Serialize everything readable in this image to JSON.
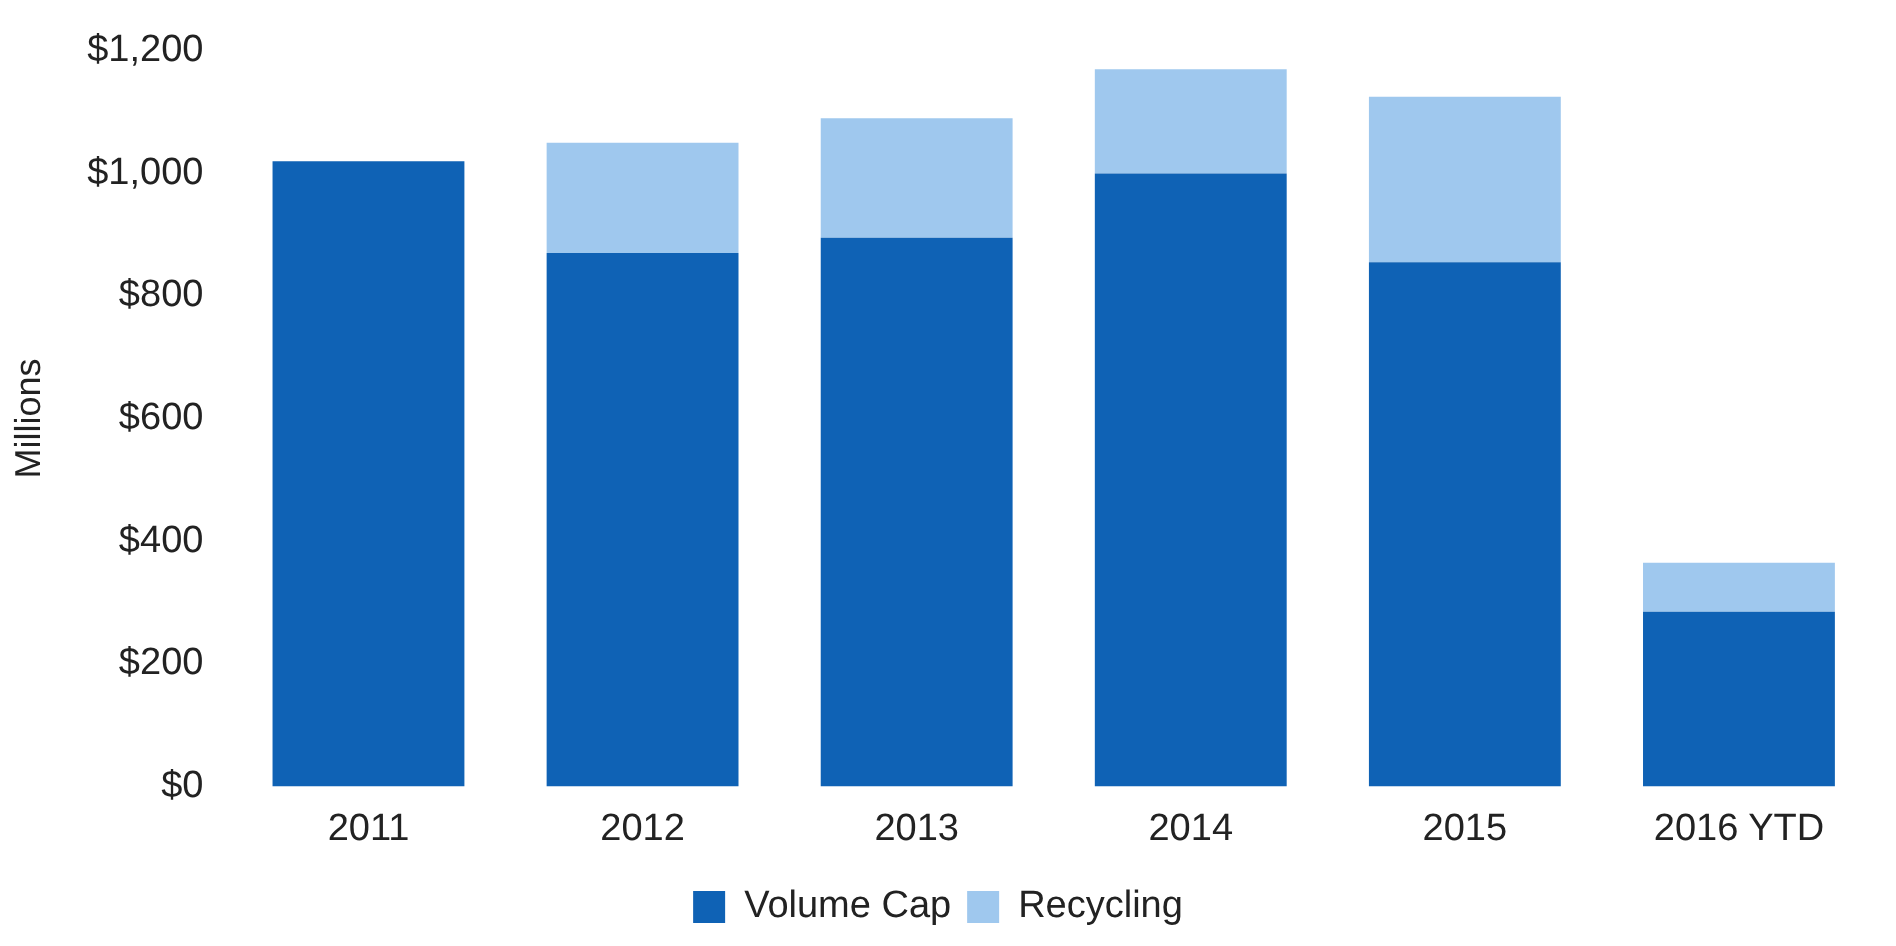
{
  "chart_data": {
    "type": "bar",
    "stacked": true,
    "ylabel": "Millions",
    "categories": [
      "2011",
      "2012",
      "2013",
      "2014",
      "2015",
      "2016 YTD"
    ],
    "series": [
      {
        "name": "Volume Cap",
        "color": "#0f62b5",
        "values": [
          1020,
          870,
          895,
          1000,
          855,
          285
        ]
      },
      {
        "name": "Recycling",
        "color": "#9fc8ee",
        "values": [
          0,
          180,
          195,
          170,
          270,
          80
        ]
      }
    ],
    "ylim": [
      0,
      1200
    ],
    "yticks": [
      {
        "value": 0,
        "label": "$0"
      },
      {
        "value": 200,
        "label": "$200"
      },
      {
        "value": 400,
        "label": "$400"
      },
      {
        "value": 600,
        "label": "$600"
      },
      {
        "value": 800,
        "label": "$800"
      },
      {
        "value": 1000,
        "label": "$1,000"
      },
      {
        "value": 1200,
        "label": "$1,200"
      }
    ],
    "grid": false,
    "legend": "bottom"
  }
}
